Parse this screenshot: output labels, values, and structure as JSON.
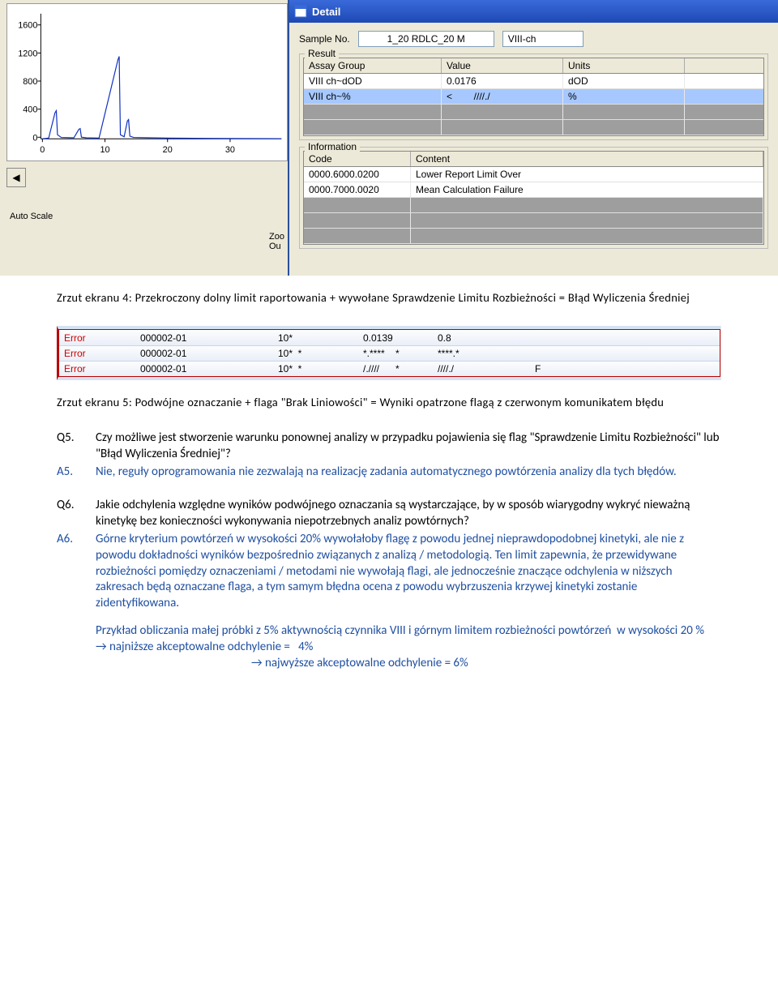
{
  "chart": {
    "y_ticks": [
      0,
      400,
      800,
      1200,
      1600
    ],
    "x_ticks": [
      0,
      10,
      20,
      30
    ],
    "ylim": [
      0,
      1800
    ],
    "xlim": [
      0,
      38
    ],
    "line_color": "#1030c0",
    "data_x": [
      0,
      1,
      2,
      2.2,
      2.4,
      3,
      5,
      5.8,
      6,
      6.2,
      7,
      9,
      12,
      12.2,
      12.4,
      13,
      13.5,
      13.7,
      13.9,
      14.5,
      20,
      30,
      38
    ],
    "data_y": [
      0,
      10,
      380,
      410,
      60,
      20,
      15,
      140,
      150,
      25,
      15,
      10,
      1150,
      1200,
      60,
      30,
      260,
      280,
      40,
      20,
      10,
      5,
      2
    ],
    "arrow_back": "◀",
    "autoscale": "Auto Scale",
    "zoom": "Zoo\nOu"
  },
  "detail": {
    "title": "Detail",
    "sample_no_label": "Sample No.",
    "sample_no": "1_20 RDLC_20 M",
    "channel": "VIII-ch",
    "result_label": "Result",
    "result_headers": {
      "assay": "Assay Group",
      "value": "Value",
      "units": "Units"
    },
    "result_rows": [
      {
        "assay": "VIII ch~dOD",
        "value": "0.0176",
        "units": "dOD"
      },
      {
        "assay": "VIII ch~%",
        "value": "<        ////./",
        "units": "%",
        "selected": true
      }
    ],
    "info_label": "Information",
    "info_headers": {
      "code": "Code",
      "content": "Content"
    },
    "info_rows": [
      {
        "code": "0000.6000.0200",
        "content": "Lower Report Limit Over"
      },
      {
        "code": "0000.7000.0020",
        "content": "Mean Calculation Failure"
      }
    ]
  },
  "caption4": "Zrzut ekranu 4: Przekroczony dolny limit raportowania + wywołane Sprawdzenie Limitu Rozbieżności = Błąd Wyliczenia Średniej",
  "error_rows": [
    {
      "e": "Error",
      "id": "000002-01",
      "rep": "10*",
      "v1": "0.0139",
      "v2": "0.8",
      "f": ""
    },
    {
      "e": "Error",
      "id": "000002-01",
      "rep": "10*  *",
      "v1": "*.****    *",
      "v2": "****.*",
      "f": ""
    },
    {
      "e": "Error",
      "id": "000002-01",
      "rep": "10*  *",
      "v1": "/.////      *",
      "v2": "////./",
      "f": "F"
    }
  ],
  "caption5": "Zrzut ekranu 5: Podwójne oznaczanie + flaga \"Brak Liniowości\" = Wyniki opatrzone flagą z czerwonym komunikatem błędu",
  "q5": {
    "num": "Q5.",
    "text": "Czy możliwe jest stworzenie warunku ponownej analizy w przypadku pojawienia się flag \"Sprawdzenie Limitu Rozbieżności\" lub \"Błąd Wyliczenia Średniej\"?",
    "anum": "A5.",
    "atext": "Nie, reguły oprogramowania nie zezwalają na realizację zadania automatycznego powtórzenia analizy dla tych błędów."
  },
  "q6": {
    "num": "Q6.",
    "text": "Jakie odchylenia względne wyników podwójnego oznaczania są wystarczające, by w sposób wiarygodny wykryć nieważną kinetykę bez konieczności wykonywania niepotrzebnych analiz powtórnych?",
    "anum": "A6.",
    "atext": "Górne kryterium powtórzeń w wysokości 20% wywołałoby flagę z powodu jednej nieprawdopodobnej kinetyki, ale nie z powodu dokładności wyników bezpośrednio związanych z analizą / metodologią. Ten limit zapewnia, że przewidywane rozbieżności pomiędzy oznaczeniami / metodami nie wywołają flagi, ale jednocześnie znaczące odchylenia w niższych zakresach będą oznaczane flaga, a tym samym błędna ocena z powodu wybrzuszenia krzywej kinetyki zostanie zidentyfikowana.",
    "example1": "Przykład obliczania małej próbki z 5% aktywnością czynnika VIII i górnym limitem rozbieżności powtórzeń  w wysokości 20 %      → najniższe akceptowalne odchylenie =   4%",
    "example2": "→ najwyższe akceptowalne odchylenie =   6%"
  }
}
